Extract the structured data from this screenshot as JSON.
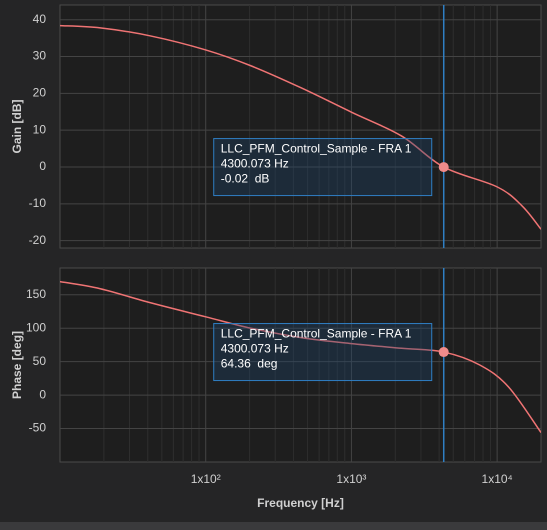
{
  "chart_data": [
    {
      "type": "line",
      "y_label": "Gain [dB]",
      "log_x": true,
      "grid": true,
      "xlim": [
        10,
        20000
      ],
      "ylim": [
        -22,
        44
      ],
      "xticks": [
        100,
        1000,
        10000
      ],
      "x_tick_labels": false,
      "yticks": [
        -20,
        -10,
        0,
        10,
        20,
        30,
        40
      ],
      "x": [
        10,
        18.9,
        41.8,
        100,
        204,
        452,
        1000,
        2212,
        4300.073,
        10000,
        14860,
        20000
      ],
      "series": [
        {
          "color": "#f07474",
          "values": [
            38.4,
            37.8,
            35.6,
            31.8,
            27.5,
            21.5,
            14.9,
            8.4,
            -0.02,
            -5.4,
            -10.6,
            -16.9
          ]
        }
      ],
      "cursor": {
        "x": 4300.073,
        "y": -0.02,
        "color": "#2f7fc4",
        "label": [
          "LLC_PFM_Control_Sample - FRA 1",
          "4300.073 Hz",
          "-0.02  dB"
        ]
      }
    },
    {
      "type": "line",
      "y_label": "Phase [deg]",
      "x_label": "Frequency [Hz]",
      "log_x": true,
      "grid": true,
      "xlim": [
        10,
        20000
      ],
      "ylim": [
        -100,
        190
      ],
      "xticks": [
        {
          "value": 100,
          "label": "1x10²"
        },
        {
          "value": 1000,
          "label": "1x10³"
        },
        {
          "value": 10000,
          "label": "1x10⁴"
        }
      ],
      "x_tick_labels": true,
      "yticks": [
        -50,
        0,
        50,
        100,
        150
      ],
      "x": [
        10,
        18.9,
        41.8,
        100,
        204,
        452,
        1000,
        2212,
        4300.073,
        7600,
        12000,
        20000
      ],
      "series": [
        {
          "color": "#f07474",
          "values": [
            169.7,
            159,
            138,
            117,
            100,
            86,
            77,
            70,
            64.36,
            45,
            12,
            -56
          ]
        }
      ],
      "cursor": {
        "x": 4300.073,
        "y": 64.36,
        "color": "#2f7fc4",
        "label": [
          "LLC_PFM_Control_Sample - FRA 1",
          "4300.073 Hz",
          "64.36  deg"
        ]
      }
    }
  ]
}
